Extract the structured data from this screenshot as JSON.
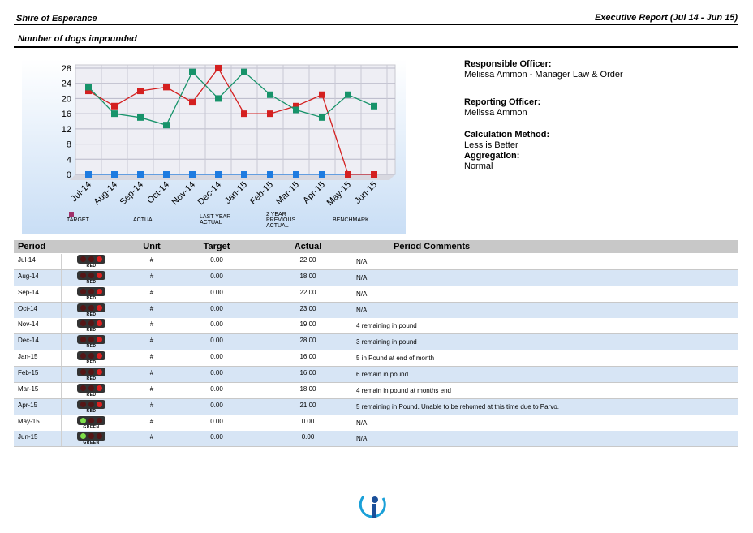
{
  "header": {
    "org": "Shire of Esperance",
    "report": "Executive Report (Jul 14 - Jun 15)",
    "measure": "Number of dogs impounded"
  },
  "chart_data": {
    "type": "line",
    "categories": [
      "Jul-14",
      "Aug-14",
      "Sep-14",
      "Oct-14",
      "Nov-14",
      "Dec-14",
      "Jan-15",
      "Feb-15",
      "Mar-15",
      "Apr-15",
      "May-15",
      "Jun-15"
    ],
    "ylim": [
      0,
      28
    ],
    "yticks": [
      0,
      4,
      8,
      12,
      16,
      20,
      24,
      28
    ],
    "grid": true,
    "series": [
      {
        "name": "TARGET",
        "color": "#1e7be0",
        "values": [
          0,
          0,
          0,
          0,
          0,
          0,
          0,
          0,
          0,
          0,
          0,
          0
        ]
      },
      {
        "name": "ACTUAL",
        "color": "#d42020",
        "values": [
          22,
          18,
          22,
          23,
          19,
          28,
          16,
          16,
          18,
          21,
          0,
          0
        ]
      },
      {
        "name": "LAST YEAR ACTUAL",
        "color": "#17936a",
        "values": [
          23,
          16,
          15,
          13,
          27,
          20,
          27,
          21,
          17,
          15,
          21,
          18
        ]
      },
      {
        "name": "2 YEAR PREVIOUS ACTUAL",
        "color": "#e8c020",
        "values": [
          null,
          null,
          null,
          null,
          null,
          null,
          null,
          null,
          null,
          null,
          null,
          null
        ]
      },
      {
        "name": "BENCHMARK",
        "color": "#a0306a",
        "values": [
          null,
          null,
          null,
          null,
          null,
          null,
          null,
          null,
          null,
          null,
          null,
          null
        ]
      }
    ]
  },
  "info": [
    {
      "label": "Responsible Officer:",
      "value": "Melissa Ammon - Manager Law & Order"
    },
    {
      "label": "Reporting Officer:",
      "value": "Melissa Ammon"
    },
    {
      "label": "Calculation Method:",
      "value": "Less is Better"
    },
    {
      "label": "Aggregation:",
      "value": "Normal"
    }
  ],
  "table": {
    "columns": [
      "Period",
      "Unit",
      "Target",
      "Actual",
      "Period Comments"
    ],
    "rows": [
      {
        "period": "Jul-14",
        "status": "RED",
        "unit": "#",
        "target": "0.00",
        "actual": "22.00",
        "comment": "N/A"
      },
      {
        "period": "Aug-14",
        "status": "RED",
        "unit": "#",
        "target": "0.00",
        "actual": "18.00",
        "comment": "N/A"
      },
      {
        "period": "Sep-14",
        "status": "RED",
        "unit": "#",
        "target": "0.00",
        "actual": "22.00",
        "comment": "N/A"
      },
      {
        "period": "Oct-14",
        "status": "RED",
        "unit": "#",
        "target": "0.00",
        "actual": "23.00",
        "comment": "N/A"
      },
      {
        "period": "Nov-14",
        "status": "RED",
        "unit": "#",
        "target": "0.00",
        "actual": "19.00",
        "comment": "4 remaining in pound"
      },
      {
        "period": "Dec-14",
        "status": "RED",
        "unit": "#",
        "target": "0.00",
        "actual": "28.00",
        "comment": "3 remaining in pound"
      },
      {
        "period": "Jan-15",
        "status": "RED",
        "unit": "#",
        "target": "0.00",
        "actual": "16.00",
        "comment": "5 in Pound at end of month"
      },
      {
        "period": "Feb-15",
        "status": "RED",
        "unit": "#",
        "target": "0.00",
        "actual": "16.00",
        "comment": "6 remain in pound"
      },
      {
        "period": "Mar-15",
        "status": "RED",
        "unit": "#",
        "target": "0.00",
        "actual": "18.00",
        "comment": "4 remain in pound at months end"
      },
      {
        "period": "Apr-15",
        "status": "RED",
        "unit": "#",
        "target": "0.00",
        "actual": "21.00",
        "comment": "5 remaining in Pound. Unable to be rehomed at this time due to Parvo."
      },
      {
        "period": "May-15",
        "status": "GREEN",
        "unit": "#",
        "target": "0.00",
        "actual": "0.00",
        "comment": "N/A"
      },
      {
        "period": "Jun-15",
        "status": "GREEN",
        "unit": "#",
        "target": "0.00",
        "actual": "0.00",
        "comment": "N/A"
      }
    ]
  }
}
